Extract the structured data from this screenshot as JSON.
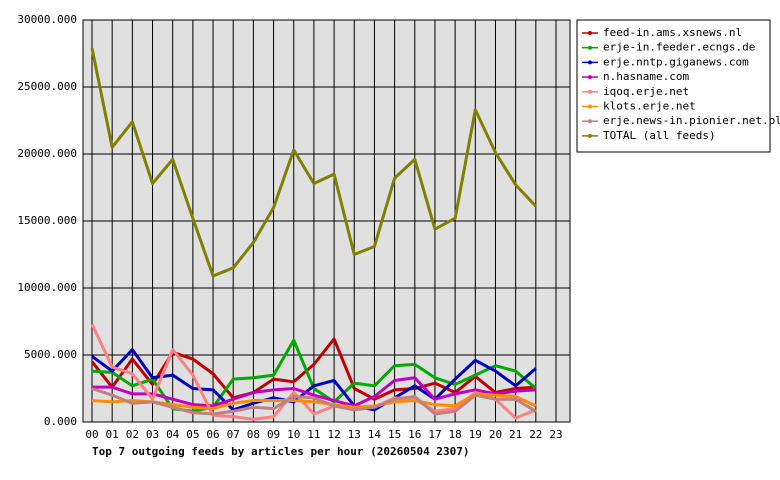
{
  "chart_data": {
    "type": "line",
    "title": "Top 7 outgoing feeds by articles per hour (20260504 2307)",
    "categories": [
      "00",
      "01",
      "02",
      "03",
      "04",
      "05",
      "06",
      "07",
      "08",
      "09",
      "10",
      "11",
      "12",
      "13",
      "14",
      "15",
      "16",
      "17",
      "18",
      "19",
      "20",
      "21",
      "22",
      "23"
    ],
    "ylim": [
      0,
      30000
    ],
    "yticks": [
      {
        "value": 0,
        "label": "0.000"
      },
      {
        "value": 5000,
        "label": "5000.000"
      },
      {
        "value": 10000,
        "label": "10000.000"
      },
      {
        "value": 15000,
        "label": "15000.000"
      },
      {
        "value": 20000,
        "label": "20000.000"
      },
      {
        "value": 25000,
        "label": "25000.000"
      },
      {
        "value": 30000,
        "label": "30000.000"
      }
    ],
    "grid": true,
    "legend": "right",
    "series": [
      {
        "name": "feed-in.ams.xsnews.nl",
        "color": "#c00000",
        "values": [
          4500,
          2600,
          4700,
          2800,
          5200,
          4700,
          3600,
          1800,
          2200,
          3200,
          3000,
          4300,
          6200,
          2500,
          1700,
          2400,
          2500,
          2900,
          2200,
          3400,
          2200,
          2500,
          2600,
          null
        ]
      },
      {
        "name": "erje-in.feeder.ecngs.de",
        "color": "#00aa00",
        "values": [
          3800,
          3700,
          2700,
          3200,
          1000,
          800,
          1100,
          3200,
          3300,
          3500,
          6100,
          2500,
          1500,
          2900,
          2700,
          4200,
          4300,
          3300,
          2800,
          3500,
          4200,
          3800,
          2500,
          null
        ]
      },
      {
        "name": "erje.nntp.giganews.com",
        "color": "#0000c0",
        "values": [
          4900,
          3800,
          5400,
          3300,
          3500,
          2500,
          2400,
          900,
          1400,
          1800,
          1500,
          2700,
          3100,
          1200,
          900,
          1800,
          2700,
          1700,
          3200,
          4600,
          3800,
          2700,
          4000,
          null
        ]
      },
      {
        "name": "n.hasname.com",
        "color": "#c000c0",
        "values": [
          2600,
          2600,
          2100,
          2100,
          1700,
          1300,
          1200,
          1700,
          2200,
          2400,
          2500,
          2000,
          1600,
          1200,
          1900,
          3100,
          3300,
          1700,
          2100,
          2400,
          2100,
          2300,
          2400,
          null
        ]
      },
      {
        "name": "iqoq.erje.net",
        "color": "#ff8080",
        "values": [
          7300,
          4100,
          3600,
          1700,
          5400,
          3500,
          500,
          400,
          200,
          400,
          2200,
          600,
          1200,
          1000,
          1100,
          1800,
          1700,
          800,
          1000,
          2200,
          1700,
          300,
          900,
          null
        ]
      },
      {
        "name": "klots.erje.net",
        "color": "#ff8c00",
        "values": [
          1600,
          1500,
          1600,
          1500,
          1300,
          1100,
          1000,
          1400,
          1600,
          1600,
          1600,
          1500,
          1300,
          1100,
          1200,
          1500,
          1600,
          1300,
          1200,
          2100,
          2000,
          1900,
          1200,
          null
        ]
      },
      {
        "name": "erje.news-in.pionier.net.pl",
        "color": "#c08080",
        "values": [
          2500,
          2000,
          1400,
          1500,
          1100,
          700,
          600,
          800,
          1100,
          1000,
          1900,
          1800,
          1200,
          900,
          1100,
          1700,
          1900,
          600,
          800,
          2000,
          1700,
          1700,
          800,
          null
        ]
      },
      {
        "name": "TOTAL (all feeds)",
        "color": "#808000",
        "values": [
          27900,
          20500,
          22400,
          17800,
          19600,
          15200,
          10900,
          11500,
          13400,
          16000,
          20300,
          17800,
          18500,
          12500,
          13100,
          18200,
          19600,
          14400,
          15200,
          23300,
          20100,
          17700,
          16100,
          null
        ]
      }
    ]
  }
}
